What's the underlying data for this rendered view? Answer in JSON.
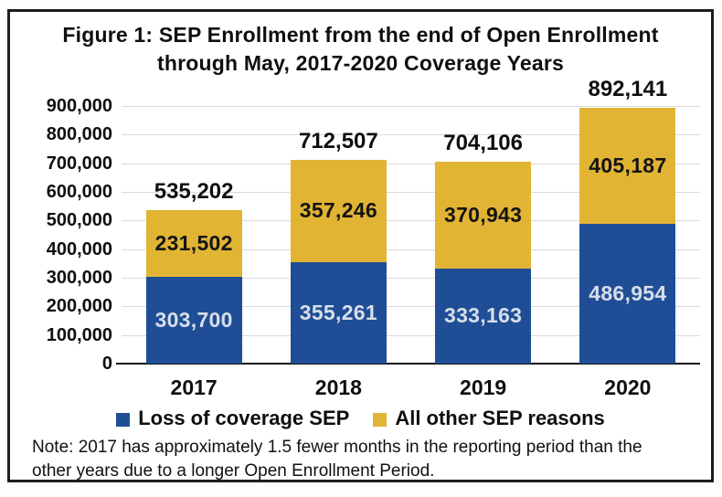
{
  "figure": {
    "title_lines": [
      "Figure 1: SEP Enrollment from the end of Open Enrollment",
      "through May, 2017-2020 Coverage Years"
    ],
    "note": "Note: 2017 has approximately 1.5 fewer months in the reporting period than the other years due to a longer Open Enrollment Period."
  },
  "legend": {
    "items": [
      {
        "label": "Loss of coverage SEP",
        "color": "#1f4e96"
      },
      {
        "label": "All other SEP reasons",
        "color": "#e2b434"
      }
    ]
  },
  "chart_data": {
    "type": "bar",
    "stacked": true,
    "title": "Figure 1: SEP Enrollment from the end of Open Enrollment through May, 2017-2020 Coverage Years",
    "categories": [
      "2017",
      "2018",
      "2019",
      "2020"
    ],
    "series": [
      {
        "name": "Loss of coverage SEP",
        "color": "#1f4e96",
        "label_color": "#d8dee9",
        "values": [
          303700,
          355261,
          333163,
          486954
        ]
      },
      {
        "name": "All other SEP reasons",
        "color": "#e2b434",
        "label_color": "#141414",
        "values": [
          231502,
          357246,
          370943,
          405187
        ]
      }
    ],
    "totals": [
      535202,
      712507,
      704106,
      892141
    ],
    "xlabel": "",
    "ylabel": "",
    "ylim": [
      0,
      900000
    ],
    "y_tick_step": 100000,
    "y_tick_labels": [
      "0",
      "100,000",
      "200,000",
      "300,000",
      "400,000",
      "500,000",
      "600,000",
      "700,000",
      "800,000",
      "900,000"
    ],
    "grid": true,
    "gridline_color": "#d9d9d9",
    "legend_position": "bottom",
    "note": "Note: 2017 has approximately 1.5 fewer months in the reporting period than the other years due to a longer Open Enrollment Period."
  }
}
